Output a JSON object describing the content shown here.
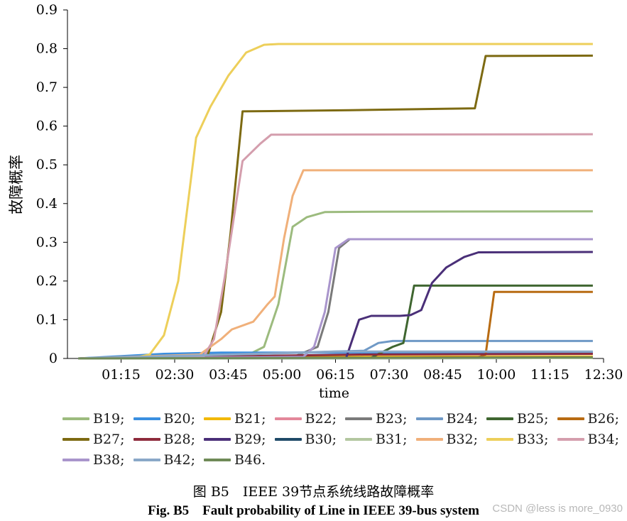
{
  "chart_data": {
    "type": "line",
    "ylabel": "故障概率",
    "xlabel": "time",
    "ylim": [
      0,
      0.9
    ],
    "yticks": [
      "0",
      "0.1",
      "0.2",
      "0.3",
      "0.4",
      "0.5",
      "0.6",
      "0.7",
      "0.8",
      "0.9"
    ],
    "xlim_minutes": [
      0,
      750
    ],
    "xticks": [
      "01:15",
      "02:30",
      "03:45",
      "05:00",
      "06:15",
      "07:30",
      "08:45",
      "10:00",
      "11:15",
      "12:30"
    ],
    "series": [
      {
        "name": "B19;",
        "color": "#9cbb7e",
        "points": [
          [
            0,
            0
          ],
          [
            230,
            0.002
          ],
          [
            260,
            0.03
          ],
          [
            280,
            0.14
          ],
          [
            300,
            0.34
          ],
          [
            320,
            0.365
          ],
          [
            345,
            0.378
          ],
          [
            420,
            0.379
          ],
          [
            720,
            0.38
          ]
        ]
      },
      {
        "name": "B20;",
        "color": "#3a8fe0",
        "points": [
          [
            0,
            0
          ],
          [
            120,
            0.012
          ],
          [
            150,
            0.013
          ],
          [
            200,
            0.015
          ],
          [
            340,
            0.015
          ],
          [
            720,
            0.015
          ]
        ]
      },
      {
        "name": "B21;",
        "color": "#f2b800",
        "points": [
          [
            0,
            0
          ],
          [
            300,
            0.001
          ],
          [
            330,
            0.004
          ],
          [
            720,
            0.005
          ]
        ]
      },
      {
        "name": "B22;",
        "color": "#e3879a",
        "points": [
          [
            0,
            0
          ],
          [
            500,
            0.002
          ],
          [
            720,
            0.003
          ]
        ]
      },
      {
        "name": "B23;",
        "color": "#7a7a7a",
        "points": [
          [
            0,
            0
          ],
          [
            300,
            0.003
          ],
          [
            335,
            0.03
          ],
          [
            350,
            0.12
          ],
          [
            365,
            0.285
          ],
          [
            380,
            0.308
          ],
          [
            720,
            0.308
          ]
        ]
      },
      {
        "name": "B24;",
        "color": "#6f99c6",
        "points": [
          [
            0,
            0
          ],
          [
            400,
            0.02
          ],
          [
            420,
            0.04
          ],
          [
            440,
            0.045
          ],
          [
            720,
            0.045
          ]
        ]
      },
      {
        "name": "B25;",
        "color": "#3f6630",
        "points": [
          [
            0,
            0
          ],
          [
            410,
            0.002
          ],
          [
            440,
            0.03
          ],
          [
            455,
            0.04
          ],
          [
            470,
            0.188
          ],
          [
            720,
            0.188
          ]
        ]
      },
      {
        "name": "B26;",
        "color": "#b86b12",
        "points": [
          [
            0,
            0
          ],
          [
            560,
            0.003
          ],
          [
            570,
            0.01
          ],
          [
            570,
            0.01
          ],
          [
            582,
            0.172
          ],
          [
            720,
            0.172
          ]
        ]
      },
      {
        "name": "B27;",
        "color": "#7d6a12",
        "points": [
          [
            0,
            0
          ],
          [
            180,
            0.001
          ],
          [
            200,
            0.12
          ],
          [
            213,
            0.32
          ],
          [
            230,
            0.638
          ],
          [
            380,
            0.641
          ],
          [
            520,
            0.645
          ],
          [
            555,
            0.646
          ],
          [
            570,
            0.781
          ],
          [
            720,
            0.782
          ]
        ]
      },
      {
        "name": "B28;",
        "color": "#8e2b3c",
        "points": [
          [
            0,
            0
          ],
          [
            400,
            0.01
          ],
          [
            720,
            0.012
          ]
        ]
      },
      {
        "name": "B29;",
        "color": "#4a2f78",
        "points": [
          [
            0,
            0
          ],
          [
            375,
            0.002
          ],
          [
            393,
            0.1
          ],
          [
            410,
            0.11
          ],
          [
            450,
            0.11
          ],
          [
            465,
            0.112
          ],
          [
            480,
            0.125
          ],
          [
            495,
            0.195
          ],
          [
            515,
            0.235
          ],
          [
            540,
            0.262
          ],
          [
            560,
            0.274
          ],
          [
            720,
            0.275
          ]
        ]
      },
      {
        "name": "B30;",
        "color": "#1f4a68",
        "points": [
          [
            0,
            0
          ],
          [
            720,
            0.001
          ]
        ]
      },
      {
        "name": "B31;",
        "color": "#b3c7a0",
        "points": [
          [
            0,
            0
          ],
          [
            720,
            0.001
          ]
        ]
      },
      {
        "name": "B32;",
        "color": "#f0b07a",
        "points": [
          [
            0,
            0
          ],
          [
            170,
            0.01
          ],
          [
            200,
            0.05
          ],
          [
            215,
            0.075
          ],
          [
            245,
            0.095
          ],
          [
            265,
            0.14
          ],
          [
            275,
            0.16
          ],
          [
            288,
            0.31
          ],
          [
            300,
            0.42
          ],
          [
            315,
            0.486
          ],
          [
            720,
            0.486
          ]
        ]
      },
      {
        "name": "B33;",
        "color": "#edcf5a",
        "points": [
          [
            0,
            0
          ],
          [
            80,
            0.002
          ],
          [
            100,
            0.01
          ],
          [
            120,
            0.06
          ],
          [
            140,
            0.2
          ],
          [
            165,
            0.57
          ],
          [
            185,
            0.65
          ],
          [
            210,
            0.73
          ],
          [
            235,
            0.79
          ],
          [
            260,
            0.81
          ],
          [
            280,
            0.812
          ],
          [
            720,
            0.812
          ]
        ]
      },
      {
        "name": "B34;",
        "color": "#d49ead",
        "points": [
          [
            0,
            0
          ],
          [
            175,
            0.004
          ],
          [
            190,
            0.05
          ],
          [
            205,
            0.21
          ],
          [
            230,
            0.51
          ],
          [
            255,
            0.555
          ],
          [
            270,
            0.578
          ],
          [
            720,
            0.579
          ]
        ]
      },
      {
        "name": "B38;",
        "color": "#a995cc",
        "points": [
          [
            0,
            0
          ],
          [
            315,
            0.004
          ],
          [
            330,
            0.03
          ],
          [
            345,
            0.12
          ],
          [
            360,
            0.285
          ],
          [
            378,
            0.308
          ],
          [
            720,
            0.308
          ]
        ]
      },
      {
        "name": "B42;",
        "color": "#8aa8c8",
        "points": [
          [
            0,
            0
          ],
          [
            320,
            0.015
          ],
          [
            360,
            0.018
          ],
          [
            720,
            0.018
          ]
        ]
      },
      {
        "name": "B46.",
        "color": "#6f8a57",
        "points": [
          [
            0,
            0
          ],
          [
            720,
            0.003
          ]
        ]
      }
    ]
  },
  "caption": {
    "cn": "图 B5　IEEE 39节点系统线路故障概率",
    "en": "Fig. B5　Fault probability of Line in IEEE 39-bus system"
  },
  "watermark": "CSDN @less is more_0930"
}
